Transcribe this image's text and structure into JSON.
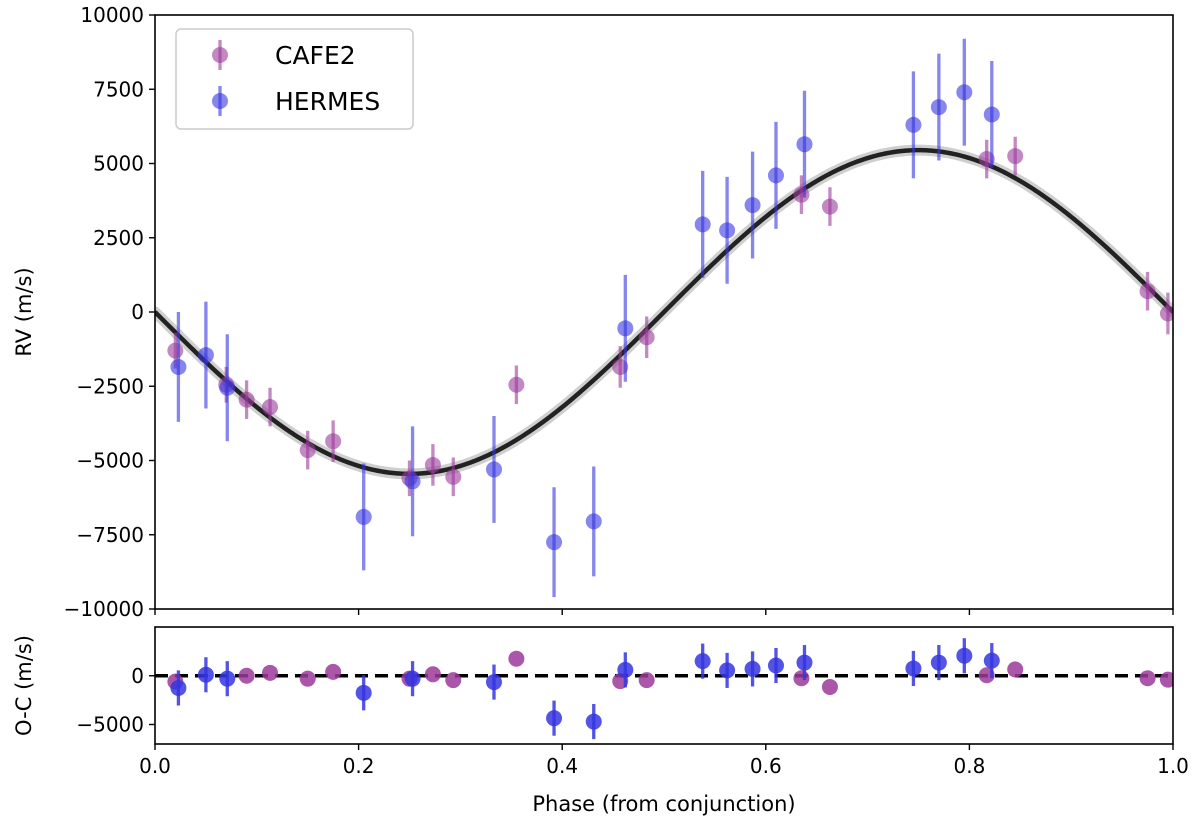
{
  "chart_data": {
    "type": "scatter",
    "xlabel": "Phase (from conjunction)",
    "xlim": [
      0,
      1
    ],
    "xticks": [
      0.0,
      0.2,
      0.4,
      0.6,
      0.8,
      1.0
    ],
    "xtick_labels": [
      "0.0",
      "0.2",
      "0.4",
      "0.6",
      "0.8",
      "1.0"
    ],
    "legend": {
      "position": "upper-left",
      "entries": [
        "CAFE2",
        "HERMES"
      ]
    },
    "colors": {
      "CAFE2": "#9b3a9b",
      "HERMES": "#3535e0",
      "model": "#222222",
      "model_band": "#cfcfcf"
    },
    "panels": [
      {
        "name": "rv",
        "ylabel": "RV (m/s)",
        "ylim": [
          -10000,
          10000
        ],
        "yticks": [
          -10000,
          -7500,
          -5000,
          -2500,
          0,
          2500,
          5000,
          7500,
          10000
        ],
        "ytick_labels": [
          "−10000",
          "−7500",
          "−5000",
          "−2500",
          "0",
          "2500",
          "5000",
          "7500",
          "10000"
        ],
        "model": {
          "type": "sine",
          "amplitude": 5450,
          "phase_of_minimum": 0.25,
          "style": "solid"
        },
        "series": [
          {
            "name": "CAFE2",
            "points": [
              {
                "x": 0.02,
                "y": -1300,
                "err": 600
              },
              {
                "x": 0.07,
                "y": -2450,
                "err": 600
              },
              {
                "x": 0.09,
                "y": -2950,
                "err": 650
              },
              {
                "x": 0.113,
                "y": -3200,
                "err": 650
              },
              {
                "x": 0.15,
                "y": -4650,
                "err": 650
              },
              {
                "x": 0.175,
                "y": -4350,
                "err": 700
              },
              {
                "x": 0.25,
                "y": -5600,
                "err": 600
              },
              {
                "x": 0.273,
                "y": -5150,
                "err": 700
              },
              {
                "x": 0.293,
                "y": -5550,
                "err": 650
              },
              {
                "x": 0.355,
                "y": -2450,
                "err": 650
              },
              {
                "x": 0.457,
                "y": -1850,
                "err": 700
              },
              {
                "x": 0.483,
                "y": -850,
                "err": 700
              },
              {
                "x": 0.635,
                "y": 3950,
                "err": 650
              },
              {
                "x": 0.663,
                "y": 3550,
                "err": 650
              },
              {
                "x": 0.817,
                "y": 5150,
                "err": 650
              },
              {
                "x": 0.845,
                "y": 5250,
                "err": 650
              },
              {
                "x": 0.975,
                "y": 700,
                "err": 650
              },
              {
                "x": 0.995,
                "y": -50,
                "err": 700
              }
            ]
          },
          {
            "name": "HERMES",
            "points": [
              {
                "x": 0.023,
                "y": -1850,
                "err": 1850
              },
              {
                "x": 0.05,
                "y": -1450,
                "err": 1800
              },
              {
                "x": 0.071,
                "y": -2550,
                "err": 1800
              },
              {
                "x": 0.205,
                "y": -6900,
                "err": 1800
              },
              {
                "x": 0.253,
                "y": -5700,
                "err": 1850
              },
              {
                "x": 0.333,
                "y": -5300,
                "err": 1800
              },
              {
                "x": 0.392,
                "y": -7750,
                "err": 1850
              },
              {
                "x": 0.431,
                "y": -7050,
                "err": 1850
              },
              {
                "x": 0.462,
                "y": -550,
                "err": 1800
              },
              {
                "x": 0.538,
                "y": 2950,
                "err": 1800
              },
              {
                "x": 0.562,
                "y": 2750,
                "err": 1800
              },
              {
                "x": 0.587,
                "y": 3600,
                "err": 1800
              },
              {
                "x": 0.61,
                "y": 4600,
                "err": 1800
              },
              {
                "x": 0.638,
                "y": 5650,
                "err": 1800
              },
              {
                "x": 0.745,
                "y": 6300,
                "err": 1800
              },
              {
                "x": 0.77,
                "y": 6900,
                "err": 1800
              },
              {
                "x": 0.795,
                "y": 7400,
                "err": 1800
              },
              {
                "x": 0.822,
                "y": 6650,
                "err": 1800
              }
            ]
          }
        ]
      },
      {
        "name": "residuals",
        "ylabel": "O-C (m/s)",
        "ylim": [
          -7000,
          5000
        ],
        "yticks": [
          -5000,
          0
        ],
        "ytick_labels": [
          "−5000",
          "0"
        ],
        "model": {
          "type": "zero",
          "style": "dashed"
        },
        "series": [
          {
            "name": "CAFE2",
            "points": [
              {
                "x": 0.02,
                "y": -600,
                "err": 0
              },
              {
                "x": 0.09,
                "y": 0,
                "err": 0
              },
              {
                "x": 0.113,
                "y": 300,
                "err": 0
              },
              {
                "x": 0.15,
                "y": -300,
                "err": 0
              },
              {
                "x": 0.175,
                "y": 400,
                "err": 0
              },
              {
                "x": 0.25,
                "y": -300,
                "err": 0
              },
              {
                "x": 0.273,
                "y": 150,
                "err": 0
              },
              {
                "x": 0.293,
                "y": -450,
                "err": 0
              },
              {
                "x": 0.355,
                "y": 1750,
                "err": 0
              },
              {
                "x": 0.457,
                "y": -550,
                "err": 0
              },
              {
                "x": 0.483,
                "y": -450,
                "err": 0
              },
              {
                "x": 0.635,
                "y": -250,
                "err": 0
              },
              {
                "x": 0.663,
                "y": -1150,
                "err": 0
              },
              {
                "x": 0.817,
                "y": 50,
                "err": 0
              },
              {
                "x": 0.845,
                "y": 650,
                "err": 0
              },
              {
                "x": 0.975,
                "y": -250,
                "err": 0
              },
              {
                "x": 0.995,
                "y": -400,
                "err": 0
              }
            ]
          },
          {
            "name": "HERMES",
            "points": [
              {
                "x": 0.023,
                "y": -1250,
                "err": 1800
              },
              {
                "x": 0.05,
                "y": 100,
                "err": 1800
              },
              {
                "x": 0.071,
                "y": -300,
                "err": 1800
              },
              {
                "x": 0.205,
                "y": -1750,
                "err": 1800
              },
              {
                "x": 0.253,
                "y": -300,
                "err": 1800
              },
              {
                "x": 0.333,
                "y": -650,
                "err": 1800
              },
              {
                "x": 0.392,
                "y": -4350,
                "err": 1800
              },
              {
                "x": 0.431,
                "y": -4700,
                "err": 1800
              },
              {
                "x": 0.462,
                "y": 600,
                "err": 1800
              },
              {
                "x": 0.538,
                "y": 1500,
                "err": 1800
              },
              {
                "x": 0.562,
                "y": 550,
                "err": 1800
              },
              {
                "x": 0.587,
                "y": 700,
                "err": 1800
              },
              {
                "x": 0.61,
                "y": 1050,
                "err": 1800
              },
              {
                "x": 0.638,
                "y": 1350,
                "err": 1800
              },
              {
                "x": 0.745,
                "y": 750,
                "err": 1800
              },
              {
                "x": 0.77,
                "y": 1350,
                "err": 1800
              },
              {
                "x": 0.795,
                "y": 2050,
                "err": 1800
              },
              {
                "x": 0.822,
                "y": 1550,
                "err": 1800
              }
            ]
          }
        ]
      }
    ]
  }
}
